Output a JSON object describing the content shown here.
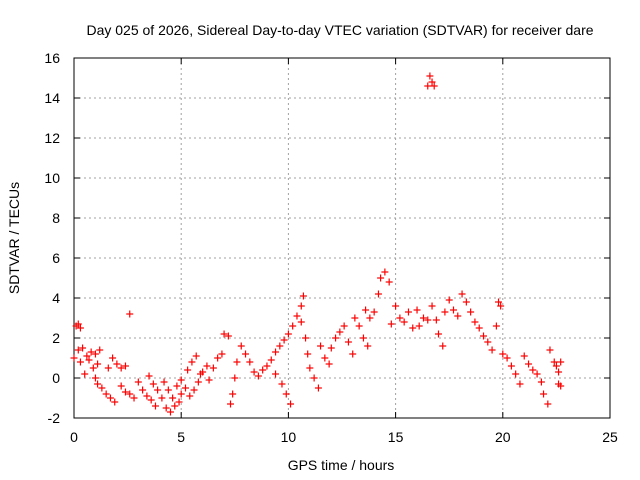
{
  "chart_data": {
    "type": "scatter",
    "title": "Day 025 of 2026, Sidereal Day-to-day VTEC variation (SDTVAR) for receiver dare",
    "xlabel": "GPS time / hours",
    "ylabel": "SDTVAR / TECUs",
    "xlim": [
      0,
      25
    ],
    "ylim": [
      -2,
      16
    ],
    "xticks": [
      "0",
      "5",
      "10",
      "15",
      "20",
      "25"
    ],
    "yticks": [
      "-2",
      "0",
      "2",
      "4",
      "6",
      "8",
      "10",
      "12",
      "14",
      "16"
    ],
    "grid": true,
    "marker": "+",
    "color": "#ff0000",
    "series": [
      {
        "name": "SDTVAR",
        "points": [
          [
            0.0,
            1.0
          ],
          [
            0.1,
            2.6
          ],
          [
            0.2,
            2.7
          ],
          [
            0.3,
            2.5
          ],
          [
            0.2,
            1.4
          ],
          [
            0.3,
            0.8
          ],
          [
            0.4,
            1.5
          ],
          [
            0.5,
            0.2
          ],
          [
            0.6,
            1.1
          ],
          [
            0.7,
            0.9
          ],
          [
            0.8,
            1.3
          ],
          [
            0.9,
            0.5
          ],
          [
            1.0,
            1.2
          ],
          [
            1.1,
            0.7
          ],
          [
            1.2,
            1.4
          ],
          [
            1.0,
            0.0
          ],
          [
            1.1,
            -0.3
          ],
          [
            1.3,
            -0.5
          ],
          [
            1.5,
            -0.8
          ],
          [
            1.7,
            -1.0
          ],
          [
            1.9,
            -1.2
          ],
          [
            1.6,
            0.5
          ],
          [
            1.8,
            1.0
          ],
          [
            2.0,
            0.7
          ],
          [
            2.2,
            0.5
          ],
          [
            2.4,
            0.6
          ],
          [
            2.2,
            -0.4
          ],
          [
            2.4,
            -0.7
          ],
          [
            2.6,
            -0.8
          ],
          [
            2.8,
            -1.0
          ],
          [
            2.6,
            3.2
          ],
          [
            3.0,
            -0.2
          ],
          [
            3.2,
            -0.6
          ],
          [
            3.4,
            -0.9
          ],
          [
            3.6,
            -1.1
          ],
          [
            3.8,
            -1.4
          ],
          [
            3.5,
            0.1
          ],
          [
            3.7,
            -0.3
          ],
          [
            3.9,
            -0.6
          ],
          [
            4.1,
            -1.0
          ],
          [
            4.3,
            -1.5
          ],
          [
            4.5,
            -1.7
          ],
          [
            4.7,
            -1.4
          ],
          [
            4.9,
            -1.2
          ],
          [
            5.0,
            -0.8
          ],
          [
            4.2,
            -0.2
          ],
          [
            4.4,
            -0.6
          ],
          [
            4.6,
            -1.0
          ],
          [
            4.8,
            -0.4
          ],
          [
            5.0,
            -0.1
          ],
          [
            5.2,
            -0.5
          ],
          [
            5.4,
            -0.9
          ],
          [
            5.6,
            -0.6
          ],
          [
            5.8,
            -0.2
          ],
          [
            6.0,
            0.3
          ],
          [
            6.2,
            0.6
          ],
          [
            5.3,
            0.4
          ],
          [
            5.5,
            0.8
          ],
          [
            5.7,
            1.1
          ],
          [
            5.9,
            0.2
          ],
          [
            6.3,
            -0.1
          ],
          [
            6.5,
            0.5
          ],
          [
            6.7,
            1.0
          ],
          [
            6.9,
            1.2
          ],
          [
            7.0,
            2.2
          ],
          [
            7.2,
            2.1
          ],
          [
            7.3,
            -1.3
          ],
          [
            7.4,
            -0.8
          ],
          [
            7.5,
            0.0
          ],
          [
            7.6,
            0.8
          ],
          [
            7.8,
            1.6
          ],
          [
            8.0,
            1.2
          ],
          [
            8.2,
            0.8
          ],
          [
            8.4,
            0.3
          ],
          [
            8.6,
            0.1
          ],
          [
            8.8,
            0.4
          ],
          [
            9.0,
            0.6
          ],
          [
            9.2,
            0.9
          ],
          [
            9.4,
            1.3
          ],
          [
            9.6,
            1.6
          ],
          [
            9.8,
            1.9
          ],
          [
            10.0,
            2.2
          ],
          [
            10.2,
            2.6
          ],
          [
            10.4,
            3.1
          ],
          [
            10.6,
            3.6
          ],
          [
            10.7,
            4.1
          ],
          [
            9.4,
            0.2
          ],
          [
            9.7,
            -0.3
          ],
          [
            9.9,
            -0.8
          ],
          [
            10.1,
            -1.3
          ],
          [
            10.6,
            2.8
          ],
          [
            10.8,
            2.0
          ],
          [
            10.9,
            1.2
          ],
          [
            11.0,
            0.5
          ],
          [
            11.2,
            0.0
          ],
          [
            11.4,
            -0.5
          ],
          [
            11.5,
            1.6
          ],
          [
            11.7,
            1.0
          ],
          [
            11.9,
            0.7
          ],
          [
            12.0,
            1.5
          ],
          [
            12.2,
            2.0
          ],
          [
            12.4,
            2.3
          ],
          [
            12.6,
            2.6
          ],
          [
            12.8,
            1.8
          ],
          [
            13.0,
            1.2
          ],
          [
            13.1,
            3.0
          ],
          [
            13.3,
            2.6
          ],
          [
            13.5,
            2.0
          ],
          [
            13.7,
            1.6
          ],
          [
            13.6,
            3.4
          ],
          [
            13.8,
            3.0
          ],
          [
            14.0,
            3.3
          ],
          [
            14.2,
            4.2
          ],
          [
            14.3,
            5.0
          ],
          [
            14.5,
            5.3
          ],
          [
            14.7,
            4.8
          ],
          [
            14.8,
            2.7
          ],
          [
            15.0,
            3.6
          ],
          [
            15.2,
            3.0
          ],
          [
            15.4,
            2.8
          ],
          [
            15.6,
            3.3
          ],
          [
            15.8,
            2.5
          ],
          [
            16.0,
            3.4
          ],
          [
            16.1,
            2.6
          ],
          [
            16.3,
            3.0
          ],
          [
            16.5,
            2.9
          ],
          [
            16.7,
            3.6
          ],
          [
            16.9,
            2.9
          ],
          [
            17.0,
            2.2
          ],
          [
            17.2,
            1.6
          ],
          [
            17.3,
            3.3
          ],
          [
            17.5,
            3.9
          ],
          [
            17.7,
            3.4
          ],
          [
            17.9,
            3.1
          ],
          [
            18.1,
            4.2
          ],
          [
            18.3,
            3.8
          ],
          [
            18.5,
            3.3
          ],
          [
            18.7,
            2.8
          ],
          [
            18.9,
            2.5
          ],
          [
            19.1,
            2.1
          ],
          [
            19.3,
            1.8
          ],
          [
            19.5,
            1.4
          ],
          [
            19.7,
            2.6
          ],
          [
            19.9,
            3.6
          ],
          [
            19.8,
            3.8
          ],
          [
            20.0,
            1.2
          ],
          [
            20.2,
            1.0
          ],
          [
            20.4,
            0.6
          ],
          [
            20.6,
            0.2
          ],
          [
            20.8,
            -0.3
          ],
          [
            21.0,
            1.1
          ],
          [
            21.2,
            0.7
          ],
          [
            21.4,
            0.4
          ],
          [
            21.6,
            0.2
          ],
          [
            21.8,
            -0.2
          ],
          [
            21.9,
            -0.8
          ],
          [
            22.1,
            -1.3
          ],
          [
            22.2,
            1.4
          ],
          [
            22.4,
            0.8
          ],
          [
            22.5,
            0.6
          ],
          [
            22.6,
            0.3
          ],
          [
            22.7,
            0.8
          ],
          [
            22.6,
            -0.3
          ],
          [
            22.7,
            -0.4
          ],
          [
            16.5,
            14.6
          ],
          [
            16.6,
            15.1
          ],
          [
            16.7,
            14.8
          ],
          [
            16.8,
            14.6
          ]
        ]
      }
    ]
  }
}
